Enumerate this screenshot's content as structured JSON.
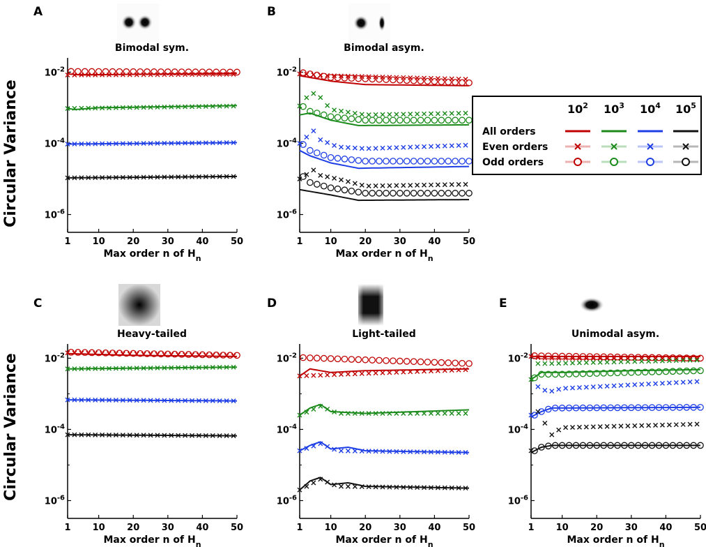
{
  "figure": {
    "y_axis_label": "Circular Variance",
    "x_axis_label_main": "Max order n of H",
    "x_axis_label_sub": "n",
    "y_tick_base": "10",
    "y_tick_exponents": [
      "-2",
      "-4",
      "-6"
    ],
    "x_ticks": [
      "1",
      "10",
      "20",
      "30",
      "40",
      "50"
    ]
  },
  "legend": {
    "header_base": "10",
    "header_exponents": [
      "2",
      "3",
      "4",
      "5"
    ],
    "row_labels": [
      "All orders",
      "Even orders",
      "Odd orders"
    ]
  },
  "colors": {
    "s1e2": "#c00000",
    "s1e3": "#1a8a1a",
    "s1e4": "#1e3ee6",
    "s1e5": "#111111"
  },
  "chart_data": [
    {
      "label": "A",
      "title": "Bimodal sym.",
      "type": "line",
      "xlim": [
        1,
        50
      ],
      "ylim_log10": [
        -6.5,
        -1.6
      ],
      "yscale": "log",
      "series": [
        {
          "name": "10^2",
          "all": [
            [
              1,
              -2.05
            ],
            [
              5,
              -2.08
            ],
            [
              20,
              -2.06
            ],
            [
              50,
              -2.03
            ]
          ],
          "even": [
            [
              1,
              -2.08
            ],
            [
              50,
              -2.06
            ]
          ],
          "odd": [
            [
              1,
              -1.98
            ],
            [
              50,
              -2.0
            ]
          ]
        },
        {
          "name": "10^3",
          "all": [
            [
              1,
              -3.02
            ],
            [
              3,
              -3.05
            ],
            [
              10,
              -3.0
            ],
            [
              50,
              -2.94
            ]
          ],
          "even": [
            [
              1,
              -3.02
            ],
            [
              50,
              -2.95
            ]
          ],
          "odd": null
        },
        {
          "name": "10^4",
          "all": [
            [
              1,
              -4.02
            ],
            [
              50,
              -3.98
            ]
          ],
          "even": [
            [
              1,
              -4.02
            ],
            [
              50,
              -3.98
            ]
          ],
          "odd": null
        },
        {
          "name": "10^5",
          "all": [
            [
              1,
              -4.97
            ],
            [
              50,
              -4.93
            ]
          ],
          "even": [
            [
              1,
              -4.97
            ],
            [
              50,
              -4.93
            ]
          ],
          "odd": null
        }
      ]
    },
    {
      "label": "B",
      "title": "Bimodal asym.",
      "type": "line",
      "xlim": [
        1,
        50
      ],
      "ylim_log10": [
        -6.5,
        -1.6
      ],
      "yscale": "log",
      "series": [
        {
          "name": "10^2",
          "all": [
            [
              1,
              -2.1
            ],
            [
              10,
              -2.25
            ],
            [
              20,
              -2.35
            ],
            [
              50,
              -2.38
            ]
          ],
          "even": [
            [
              1,
              -2.05
            ],
            [
              10,
              -2.1
            ],
            [
              50,
              -2.2
            ]
          ],
          "odd": [
            [
              1,
              -2.0
            ],
            [
              10,
              -2.15
            ],
            [
              50,
              -2.3
            ]
          ]
        },
        {
          "name": "10^3",
          "all": [
            [
              1,
              -3.2
            ],
            [
              4,
              -3.15
            ],
            [
              10,
              -3.35
            ],
            [
              18,
              -3.5
            ],
            [
              50,
              -3.48
            ]
          ],
          "even": [
            [
              1,
              -2.95
            ],
            [
              4,
              -2.6
            ],
            [
              6,
              -2.6
            ],
            [
              10,
              -3.05
            ],
            [
              20,
              -3.2
            ],
            [
              50,
              -3.15
            ]
          ],
          "odd": [
            [
              1,
              -2.9
            ],
            [
              4,
              -3.1
            ],
            [
              10,
              -3.25
            ],
            [
              20,
              -3.35
            ],
            [
              50,
              -3.35
            ]
          ]
        },
        {
          "name": "10^4",
          "all": [
            [
              1,
              -4.2
            ],
            [
              4,
              -4.35
            ],
            [
              10,
              -4.55
            ],
            [
              18,
              -4.7
            ],
            [
              50,
              -4.65
            ]
          ],
          "even": [
            [
              1,
              -4.0
            ],
            [
              5,
              -3.65
            ],
            [
              7,
              -3.9
            ],
            [
              12,
              -4.1
            ],
            [
              20,
              -4.15
            ],
            [
              50,
              -4.05
            ]
          ],
          "odd": [
            [
              1,
              -3.95
            ],
            [
              4,
              -4.2
            ],
            [
              10,
              -4.4
            ],
            [
              20,
              -4.5
            ],
            [
              50,
              -4.5
            ]
          ]
        },
        {
          "name": "10^5",
          "all": [
            [
              1,
              -5.3
            ],
            [
              4,
              -5.35
            ],
            [
              10,
              -5.45
            ],
            [
              18,
              -5.6
            ],
            [
              50,
              -5.58
            ]
          ],
          "even": [
            [
              1,
              -5.0
            ],
            [
              5,
              -4.75
            ],
            [
              7,
              -4.9
            ],
            [
              12,
              -5.0
            ],
            [
              20,
              -5.2
            ],
            [
              50,
              -5.15
            ]
          ],
          "odd": [
            [
              1,
              -4.85
            ],
            [
              4,
              -5.1
            ],
            [
              10,
              -5.25
            ],
            [
              20,
              -5.4
            ],
            [
              50,
              -5.4
            ]
          ]
        }
      ]
    },
    {
      "label": "C",
      "title": "Heavy-tailed",
      "type": "line",
      "xlim": [
        1,
        50
      ],
      "ylim_log10": [
        -6.5,
        -1.6
      ],
      "yscale": "log",
      "series": [
        {
          "name": "10^2",
          "all": [
            [
              1,
              -1.87
            ],
            [
              20,
              -1.92
            ],
            [
              50,
              -1.95
            ]
          ],
          "even": [
            [
              1,
              -1.85
            ],
            [
              50,
              -1.93
            ]
          ],
          "odd": [
            [
              1,
              -1.83
            ],
            [
              50,
              -1.92
            ]
          ]
        },
        {
          "name": "10^3",
          "all": [
            [
              1,
              -2.3
            ],
            [
              50,
              -2.25
            ]
          ],
          "even": [
            [
              1,
              -2.3
            ],
            [
              50,
              -2.25
            ]
          ],
          "odd": null
        },
        {
          "name": "10^4",
          "all": [
            [
              1,
              -3.17
            ],
            [
              50,
              -3.2
            ]
          ],
          "even": [
            [
              1,
              -3.17
            ],
            [
              50,
              -3.2
            ]
          ],
          "odd": null
        },
        {
          "name": "10^5",
          "all": [
            [
              1,
              -4.15
            ],
            [
              50,
              -4.18
            ]
          ],
          "even": [
            [
              1,
              -4.15
            ],
            [
              50,
              -4.18
            ]
          ],
          "odd": null
        }
      ]
    },
    {
      "label": "D",
      "title": "Light-tailed",
      "type": "line",
      "xlim": [
        1,
        50
      ],
      "ylim_log10": [
        -6.5,
        -1.6
      ],
      "yscale": "log",
      "series": [
        {
          "name": "10^2",
          "all": [
            [
              1,
              -2.5
            ],
            [
              4,
              -2.3
            ],
            [
              7,
              -2.35
            ],
            [
              10,
              -2.4
            ],
            [
              20,
              -2.35
            ],
            [
              50,
              -2.3
            ]
          ],
          "even": [
            [
              1,
              -2.5
            ],
            [
              50,
              -2.32
            ]
          ],
          "odd": [
            [
              1,
              -1.98
            ],
            [
              50,
              -2.15
            ]
          ]
        },
        {
          "name": "10^3",
          "all": [
            [
              1,
              -3.6
            ],
            [
              4,
              -3.4
            ],
            [
              7,
              -3.3
            ],
            [
              10,
              -3.5
            ],
            [
              20,
              -3.55
            ],
            [
              50,
              -3.45
            ]
          ],
          "even": [
            [
              1,
              -3.6
            ],
            [
              7,
              -3.35
            ],
            [
              12,
              -3.55
            ],
            [
              50,
              -3.55
            ]
          ],
          "odd": null
        },
        {
          "name": "10^4",
          "all": [
            [
              1,
              -4.6
            ],
            [
              4,
              -4.45
            ],
            [
              7,
              -4.35
            ],
            [
              10,
              -4.55
            ],
            [
              15,
              -4.5
            ],
            [
              20,
              -4.6
            ],
            [
              50,
              -4.65
            ]
          ],
          "even": [
            [
              1,
              -4.6
            ],
            [
              7,
              -4.4
            ],
            [
              12,
              -4.6
            ],
            [
              50,
              -4.65
            ]
          ],
          "odd": null
        },
        {
          "name": "10^5",
          "all": [
            [
              1,
              -5.7
            ],
            [
              4,
              -5.45
            ],
            [
              7,
              -5.35
            ],
            [
              10,
              -5.55
            ],
            [
              15,
              -5.5
            ],
            [
              20,
              -5.6
            ],
            [
              50,
              -5.65
            ]
          ],
          "even": [
            [
              1,
              -5.7
            ],
            [
              7,
              -5.4
            ],
            [
              12,
              -5.6
            ],
            [
              50,
              -5.65
            ]
          ],
          "odd": null
        }
      ]
    },
    {
      "label": "E",
      "title": "Unimodal asym.",
      "type": "line",
      "xlim": [
        1,
        50
      ],
      "ylim_log10": [
        -6.5,
        -1.6
      ],
      "yscale": "log",
      "series": [
        {
          "name": "10^2",
          "all": [
            [
              1,
              -1.95
            ],
            [
              50,
              -1.95
            ]
          ],
          "even": [
            [
              1,
              -1.95
            ],
            [
              4,
              -2.0
            ],
            [
              50,
              -2.02
            ]
          ],
          "odd": [
            [
              1,
              -1.93
            ],
            [
              50,
              -2.0
            ]
          ]
        },
        {
          "name": "10^3",
          "all": [
            [
              1,
              -2.6
            ],
            [
              4,
              -2.4
            ],
            [
              10,
              -2.4
            ],
            [
              30,
              -2.35
            ],
            [
              50,
              -2.32
            ]
          ],
          "even": [
            [
              1,
              -2.6
            ],
            [
              3,
              -2.15
            ],
            [
              6,
              -2.15
            ],
            [
              50,
              -2.05
            ]
          ],
          "odd": [
            [
              1,
              -2.6
            ],
            [
              4,
              -2.45
            ],
            [
              10,
              -2.45
            ],
            [
              50,
              -2.35
            ]
          ]
        },
        {
          "name": "10^4",
          "all": [
            [
              1,
              -3.65
            ],
            [
              4,
              -3.5
            ],
            [
              7,
              -3.4
            ],
            [
              50,
              -3.38
            ]
          ],
          "even": [
            [
              1,
              -3.6
            ],
            [
              3,
              -2.8
            ],
            [
              6,
              -2.95
            ],
            [
              10,
              -2.85
            ],
            [
              30,
              -2.75
            ],
            [
              50,
              -2.65
            ]
          ],
          "odd": [
            [
              1,
              -3.65
            ],
            [
              4,
              -3.5
            ],
            [
              7,
              -3.4
            ],
            [
              50,
              -3.38
            ]
          ]
        },
        {
          "name": "10^5",
          "all": [
            [
              1,
              -4.65
            ],
            [
              4,
              -4.5
            ],
            [
              7,
              -4.45
            ],
            [
              50,
              -4.45
            ]
          ],
          "even": [
            [
              1,
              -4.6
            ],
            [
              3,
              -3.5
            ],
            [
              7,
              -4.15
            ],
            [
              10,
              -3.95
            ],
            [
              30,
              -3.9
            ],
            [
              50,
              -3.85
            ]
          ],
          "odd": [
            [
              1,
              -4.65
            ],
            [
              4,
              -4.5
            ],
            [
              7,
              -4.45
            ],
            [
              50,
              -4.45
            ]
          ]
        }
      ]
    }
  ]
}
